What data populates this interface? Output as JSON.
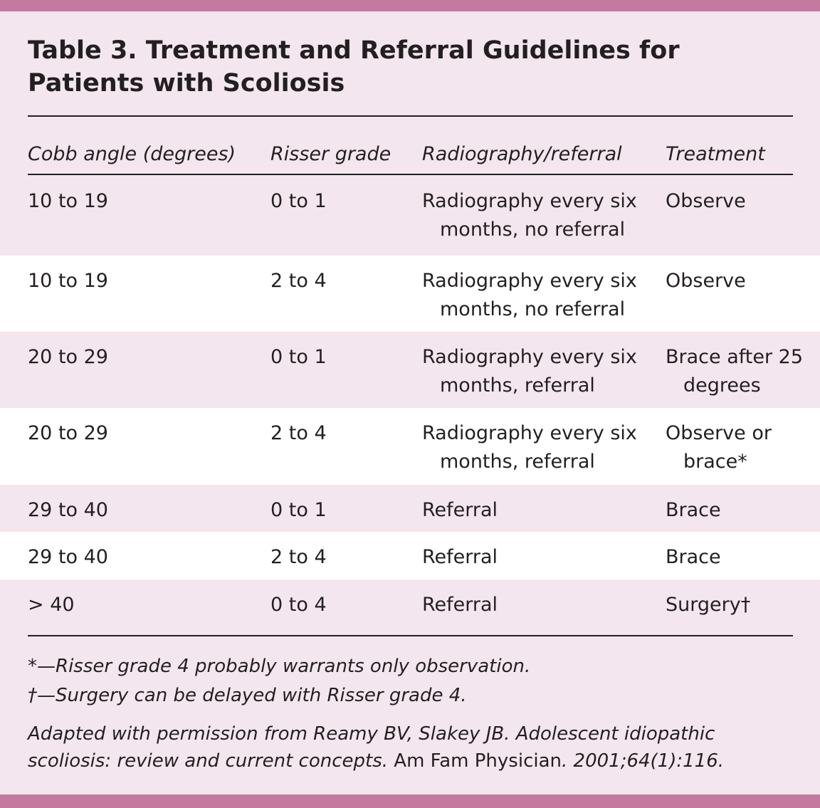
{
  "colors": {
    "accent_bar": "#c47a9e",
    "background": "#f4e6ee",
    "alt_row": "#ffffff"
  },
  "title": "Table 3. Treatment and Referral Guidelines for Patients with Scoliosis",
  "headers": [
    "Cobb angle (degrees)",
    "Risser grade",
    "Radiography/referral",
    "Treatment"
  ],
  "rows": [
    [
      "10 to 19",
      "0 to 1",
      "Radiography every six months, no referral",
      "Observe"
    ],
    [
      "10 to 19",
      "2 to 4",
      "Radiography every six months, no referral",
      "Observe"
    ],
    [
      "20 to 29",
      "0 to 1",
      "Radiography every six months, referral",
      "Brace after 25 degrees"
    ],
    [
      "20 to 29",
      "2 to 4",
      "Radiography every six months, referral",
      "Observe or brace*"
    ],
    [
      "29 to 40",
      "0 to 1",
      "Referral",
      "Brace"
    ],
    [
      "29 to 40",
      "2 to 4",
      "Referral",
      "Brace"
    ],
    [
      "> 40",
      "0 to 4",
      "Referral",
      "Surgery†"
    ]
  ],
  "footnotes": [
    "*—Risser grade 4 probably warrants only observation.",
    "†—Surgery can be delayed with Risser grade 4."
  ],
  "source": {
    "pre": "Adapted with permission from Reamy BV, Slakey JB. Adolescent idiopathic scoliosis: review and current concepts. ",
    "journal": "Am Fam Physician",
    "post": ". 2001;64(1):116."
  }
}
